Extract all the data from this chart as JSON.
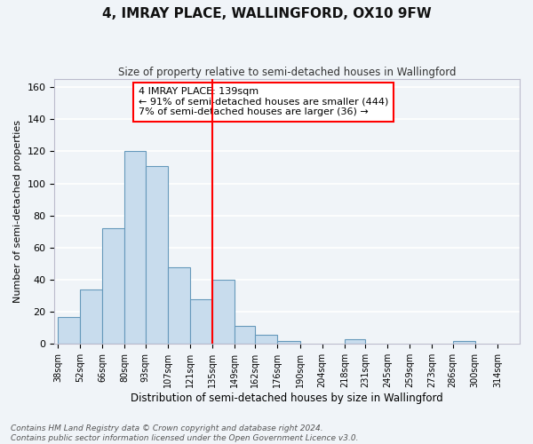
{
  "title": "4, IMRAY PLACE, WALLINGFORD, OX10 9FW",
  "subtitle": "Size of property relative to semi-detached houses in Wallingford",
  "xlabel": "Distribution of semi-detached houses by size in Wallingford",
  "ylabel": "Number of semi-detached properties",
  "bar_color": "#c8dced",
  "bar_edge_color": "#6699bb",
  "property_line_x": 135,
  "annotation_label": "4 IMRAY PLACE: 139sqm",
  "annotation_line1": "← 91% of semi-detached houses are smaller (444)",
  "annotation_line2": "7% of semi-detached houses are larger (36) →",
  "bins": [
    38,
    52,
    66,
    80,
    93,
    107,
    121,
    135,
    149,
    162,
    176,
    190,
    204,
    218,
    231,
    245,
    259,
    273,
    286,
    300,
    314
  ],
  "counts": [
    17,
    34,
    72,
    120,
    111,
    48,
    28,
    40,
    11,
    6,
    2,
    0,
    0,
    3,
    0,
    0,
    0,
    0,
    2,
    0
  ],
  "ylim": [
    0,
    165
  ],
  "yticks": [
    0,
    20,
    40,
    60,
    80,
    100,
    120,
    140,
    160
  ],
  "bg_color": "#f0f4f8",
  "grid_color": "#ffffff",
  "footnote1": "Contains HM Land Registry data © Crown copyright and database right 2024.",
  "footnote2": "Contains public sector information licensed under the Open Government Licence v3.0."
}
